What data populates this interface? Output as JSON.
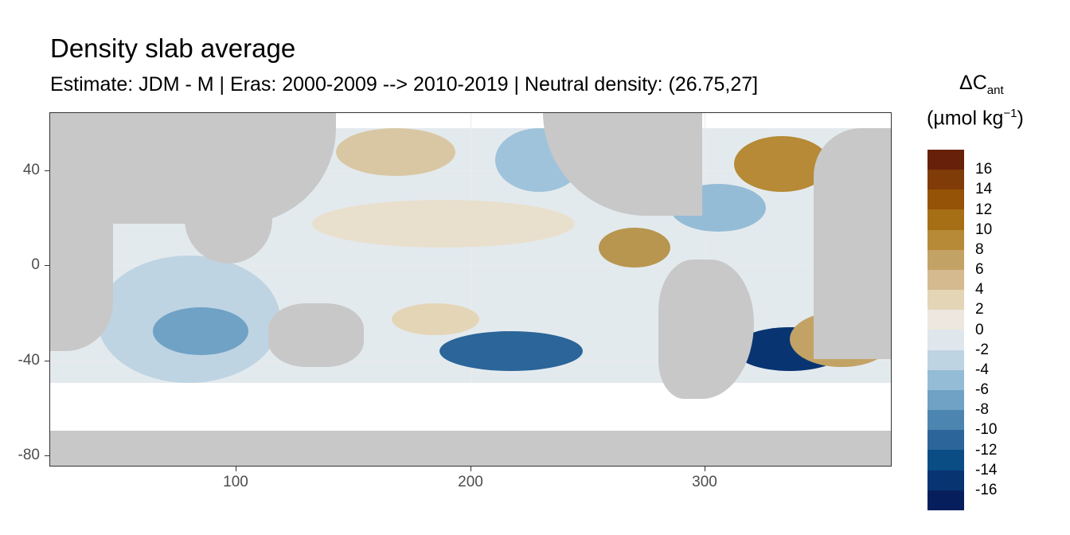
{
  "header": {
    "title": "Density slab average",
    "subtitle": "Estimate: JDM - M | Eras: 2000-2009 --> 2010-2019 | Neutral density: (26.75,27]"
  },
  "axes": {
    "y_ticks": [
      "40",
      "0",
      "-40",
      "-80"
    ],
    "x_ticks": [
      "100",
      "200",
      "300"
    ]
  },
  "legend": {
    "title_main": "ΔC",
    "title_sub": "ant",
    "unit_prefix": "(µmol kg",
    "unit_sup": "−1",
    "unit_suffix": ")",
    "labels": [
      "16",
      "14",
      "12",
      "10",
      "8",
      "6",
      "4",
      "2",
      "0",
      "-2",
      "-4",
      "-6",
      "-8",
      "-10",
      "-12",
      "-14",
      "-16"
    ],
    "colors": [
      "#67200a",
      "#7f3b08",
      "#955307",
      "#a76f15",
      "#b68a36",
      "#c3a265",
      "#d4ba8e",
      "#e4d5b7",
      "#ede7df",
      "#dfe6ec",
      "#bed4e3",
      "#95bcd6",
      "#6fa2c5",
      "#4d85b1",
      "#2b6599",
      "#0a4d85",
      "#083472",
      "#061f5c"
    ]
  },
  "colors": {
    "land": "#c8c8c8",
    "ocean_background": "#e3eaee",
    "grid": "#ebebeb"
  }
}
